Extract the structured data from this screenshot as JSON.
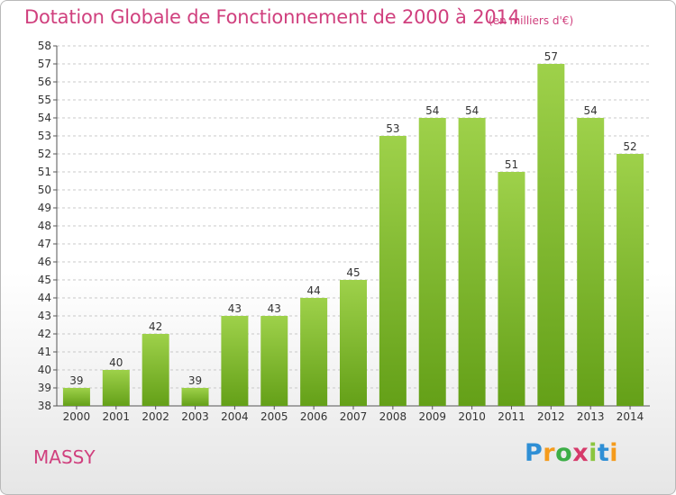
{
  "header": {
    "title": "Dotation Globale de Fonctionnement de 2000 à 2014",
    "unit": "(en milliers d'€)"
  },
  "footer": {
    "location": "MASSY",
    "brand": "Proxiti"
  },
  "colors": {
    "accent": "#d0407e",
    "bar_top": "#9ed14a",
    "bar_bottom": "#64a018",
    "grid": "#c8c8c8"
  },
  "chart_data": {
    "type": "bar",
    "categories": [
      "2000",
      "2001",
      "2002",
      "2003",
      "2004",
      "2005",
      "2006",
      "2007",
      "2008",
      "2009",
      "2010",
      "2011",
      "2012",
      "2013",
      "2014"
    ],
    "values": [
      39,
      40,
      42,
      39,
      43,
      43,
      44,
      45,
      53,
      54,
      54,
      51,
      57,
      54,
      52
    ],
    "title": "Dotation Globale de Fonctionnement de 2000 à 2014",
    "xlabel": "",
    "ylabel": "",
    "ylim": [
      38,
      58
    ],
    "ytick_step": 1,
    "grid": true,
    "data_labels": true
  }
}
